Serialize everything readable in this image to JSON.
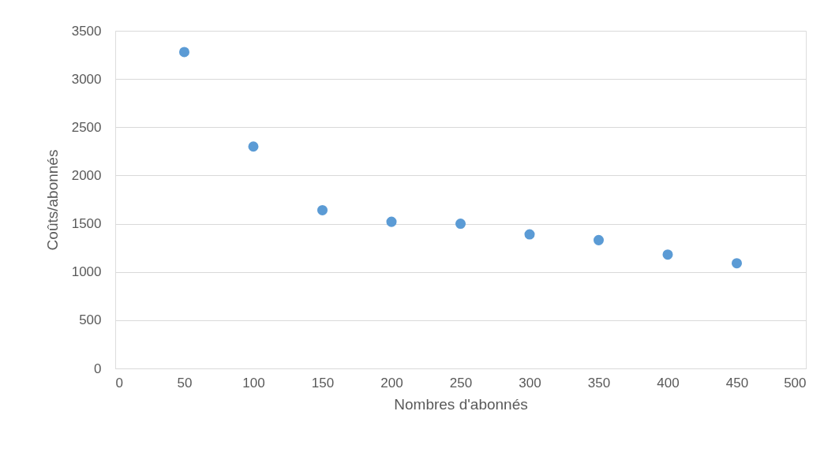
{
  "chart_data": {
    "type": "scatter",
    "xlabel": "Nombres d'abonnés",
    "ylabel": "Coûts/abonnés",
    "x": [
      50,
      100,
      150,
      200,
      250,
      300,
      350,
      400,
      450
    ],
    "series": [
      {
        "color": "#5b9bd5",
        "values": [
          3280,
          2300,
          1640,
          1520,
          1500,
          1390,
          1330,
          1180,
          1090
        ]
      }
    ],
    "xlim": [
      0,
      500
    ],
    "xticks": [
      0,
      50,
      100,
      150,
      200,
      250,
      300,
      350,
      400,
      450,
      500
    ],
    "ylim": [
      0,
      3500
    ],
    "yticks": [
      0,
      500,
      1000,
      1500,
      2000,
      2500,
      3000,
      3500
    ],
    "grid": "y",
    "legend": false,
    "marker": "circle"
  }
}
